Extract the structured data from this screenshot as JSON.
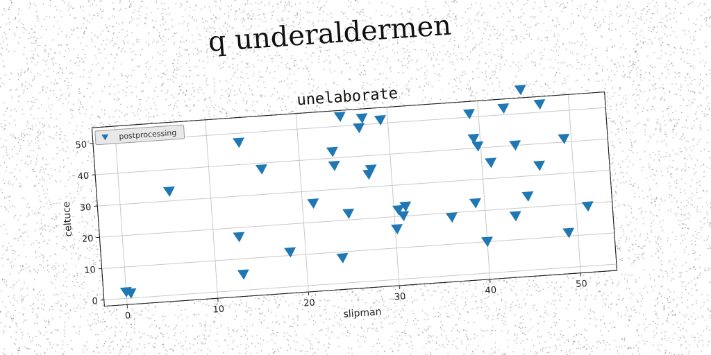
{
  "suptitle": "q underaldermen",
  "chart_data": {
    "type": "scatter",
    "title": "unelaborate",
    "xlabel": "slipman",
    "ylabel": "celtuce",
    "xlim": [
      -2.5,
      54
    ],
    "ylim": [
      -2,
      55
    ],
    "xticks": [
      0,
      10,
      20,
      30,
      40,
      50
    ],
    "yticks": [
      0,
      10,
      20,
      30,
      40,
      50
    ],
    "grid": true,
    "legend_position": "top-left",
    "marker": "triangle-down",
    "series": [
      {
        "name": "postprocessing",
        "color": "#1f77b4",
        "points": [
          [
            0,
            2
          ],
          [
            0.5,
            1.5
          ],
          [
            5.5,
            33
          ],
          [
            12.8,
            17
          ],
          [
            13,
            5
          ],
          [
            13.5,
            47
          ],
          [
            15.8,
            38
          ],
          [
            18.3,
            11
          ],
          [
            21.2,
            26
          ],
          [
            24,
            8
          ],
          [
            23.7,
            42
          ],
          [
            23.8,
            37.5
          ],
          [
            25,
            22
          ],
          [
            24.8,
            53
          ],
          [
            26.8,
            49
          ],
          [
            27.2,
            52
          ],
          [
            27.5,
            34
          ],
          [
            27.8,
            35.5
          ],
          [
            29.2,
            51
          ],
          [
            30.2,
            16
          ],
          [
            30.5,
            22
          ],
          [
            31,
            20
          ],
          [
            31.3,
            23
          ],
          [
            36.3,
            18.5
          ],
          [
            39,
            22.5
          ],
          [
            39,
            51
          ],
          [
            39.3,
            43
          ],
          [
            39.7,
            40.5
          ],
          [
            40,
            10
          ],
          [
            41,
            35
          ],
          [
            42.8,
            52
          ],
          [
            43.3,
            17.5
          ],
          [
            43.8,
            40
          ],
          [
            44.8,
            23.5
          ],
          [
            44.8,
            57.5
          ],
          [
            46.3,
            33
          ],
          [
            46.8,
            52.5
          ],
          [
            49,
            11
          ],
          [
            49.2,
            41
          ],
          [
            51.3,
            19
          ]
        ]
      }
    ]
  }
}
